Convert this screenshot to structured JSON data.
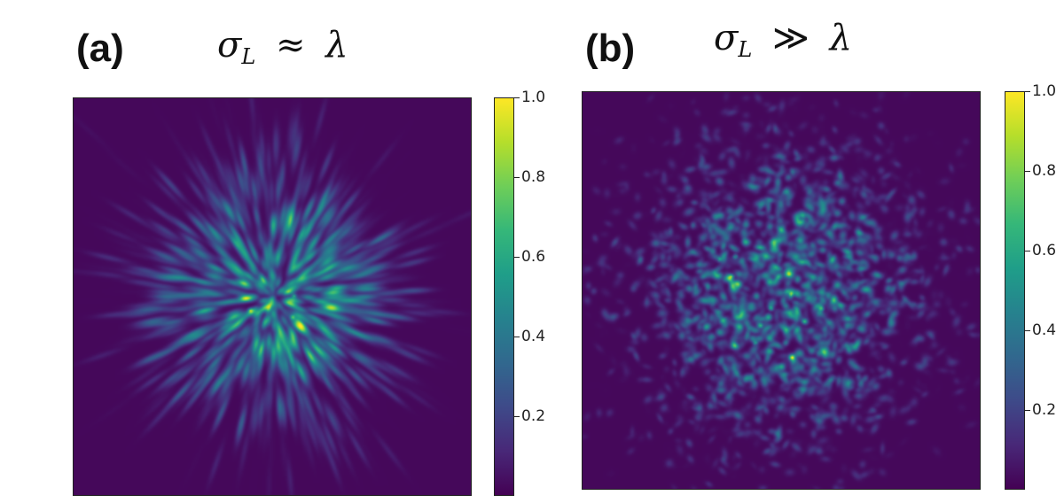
{
  "panels": [
    {
      "label": "(a)",
      "condition": {
        "symbol": "σ",
        "subscript": "L",
        "relation": "≈",
        "rhs": "λ"
      },
      "pattern": "radial-streak-speckle"
    },
    {
      "label": "(b)",
      "condition": {
        "symbol": "σ",
        "subscript": "L",
        "relation": "≫",
        "rhs": "λ"
      },
      "pattern": "isotropic-speckle"
    }
  ],
  "chart_data": [
    {
      "type": "heatmap",
      "title": "",
      "colormap": "viridis",
      "colorbar": {
        "range": [
          0,
          1.0
        ],
        "ticks": [
          "0.2",
          "0.4",
          "0.6",
          "0.8",
          "1.0"
        ]
      }
    },
    {
      "type": "heatmap",
      "title": "",
      "colormap": "viridis",
      "colorbar": {
        "range": [
          0,
          1.0
        ],
        "ticks": [
          "0.2",
          "0.4",
          "0.6",
          "0.8",
          "1.0"
        ]
      }
    }
  ]
}
